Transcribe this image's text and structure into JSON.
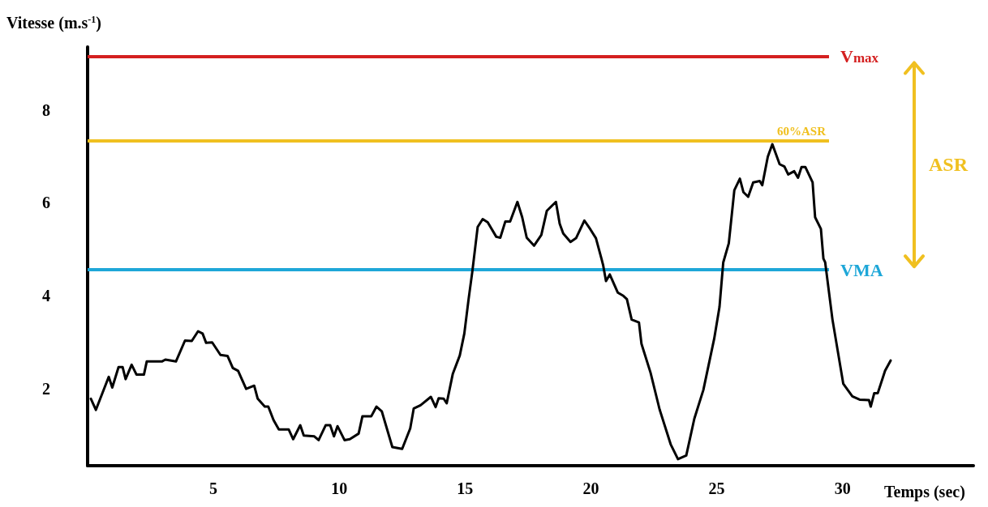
{
  "chart_data": {
    "type": "line",
    "xlabel": "Temps (sec)",
    "ylabel": "Vitesse (m.s$^{-1}$)",
    "xlim": [
      0,
      35.2
    ],
    "ylim": [
      0.35,
      9.35
    ],
    "xticks": [
      5,
      10,
      15,
      20,
      25,
      30
    ],
    "yticks": [
      2,
      4,
      6,
      8
    ],
    "grid": false,
    "marker": "none",
    "line_style": "solid",
    "series": [
      {
        "color": "#000000",
        "x": [
          0.13,
          0.33,
          0.84,
          0.98,
          1.23,
          1.39,
          1.51,
          1.75,
          1.94,
          2.24,
          2.35,
          2.95,
          3.09,
          3.51,
          3.87,
          4.14,
          4.39,
          4.57,
          4.71,
          4.95,
          5.28,
          5.56,
          5.77,
          5.98,
          6.3,
          6.62,
          6.76,
          7.04,
          7.18,
          7.39,
          7.6,
          7.99,
          8.17,
          8.45,
          8.59,
          9.01,
          9.18,
          9.46,
          9.64,
          9.79,
          9.93,
          10.21,
          10.42,
          10.77,
          10.92,
          11.27,
          11.48,
          11.69,
          12.11,
          12.5,
          12.82,
          12.96,
          13.23,
          13.64,
          13.83,
          13.95,
          14.15,
          14.27,
          14.51,
          14.79,
          14.97,
          15.14,
          15.29,
          15.5,
          15.7,
          15.9,
          16.24,
          16.4,
          16.6,
          16.79,
          17.08,
          17.27,
          17.45,
          17.74,
          18.03,
          18.25,
          18.61,
          18.76,
          18.9,
          19.19,
          19.41,
          19.74,
          19.98,
          20.2,
          20.42,
          20.49,
          20.6,
          20.75,
          21.07,
          21.29,
          21.43,
          21.62,
          21.91,
          22.01,
          22.37,
          22.73,
          23.17,
          23.46,
          23.79,
          24.11,
          24.47,
          24.9,
          25.11,
          25.26,
          25.48,
          25.7,
          25.92,
          26.06,
          26.25,
          26.45,
          26.71,
          26.81,
          27.03,
          27.21,
          27.5,
          27.69,
          27.84,
          28.08,
          28.23,
          28.37,
          28.52,
          28.81,
          28.91,
          29.14,
          29.24,
          29.31,
          29.6,
          30.03,
          30.39,
          30.68,
          31.05,
          31.12,
          31.26,
          31.4,
          31.69,
          31.91
        ],
        "values": [
          1.79,
          1.55,
          2.26,
          2.03,
          2.47,
          2.47,
          2.21,
          2.52,
          2.31,
          2.31,
          2.59,
          2.59,
          2.63,
          2.59,
          3.04,
          3.03,
          3.24,
          3.19,
          2.99,
          3.0,
          2.73,
          2.71,
          2.45,
          2.39,
          2.0,
          2.07,
          1.79,
          1.62,
          1.62,
          1.33,
          1.13,
          1.13,
          0.92,
          1.22,
          1.0,
          0.98,
          0.9,
          1.22,
          1.22,
          0.98,
          1.2,
          0.9,
          0.92,
          1.04,
          1.41,
          1.41,
          1.62,
          1.52,
          0.75,
          0.71,
          1.15,
          1.58,
          1.65,
          1.83,
          1.61,
          1.8,
          1.79,
          1.69,
          2.32,
          2.72,
          3.19,
          3.93,
          4.53,
          5.48,
          5.65,
          5.58,
          5.27,
          5.25,
          5.6,
          5.6,
          6.02,
          5.69,
          5.25,
          5.08,
          5.31,
          5.83,
          6.02,
          5.55,
          5.34,
          5.16,
          5.24,
          5.62,
          5.43,
          5.24,
          4.8,
          4.65,
          4.32,
          4.46,
          4.07,
          4.0,
          3.93,
          3.49,
          3.43,
          2.97,
          2.35,
          1.56,
          0.81,
          0.49,
          0.57,
          1.36,
          1.98,
          3.08,
          3.76,
          4.72,
          5.13,
          6.27,
          6.52,
          6.23,
          6.13,
          6.44,
          6.47,
          6.38,
          6.99,
          7.26,
          6.83,
          6.78,
          6.61,
          6.68,
          6.54,
          6.77,
          6.77,
          6.44,
          5.69,
          5.44,
          4.8,
          4.72,
          3.49,
          2.11,
          1.84,
          1.77,
          1.76,
          1.62,
          1.91,
          1.91,
          2.39,
          2.61
        ]
      }
    ],
    "ref_lines": [
      {
        "axis": "y",
        "value": 9.15,
        "label": "V$_{max}$",
        "color": "#d42020"
      },
      {
        "axis": "y",
        "value": 7.34,
        "label": "60%ASR",
        "color": "#f0c020"
      },
      {
        "axis": "y",
        "value": 4.56,
        "label": "VMA",
        "color": "#1ea7d8"
      }
    ],
    "annotations": [
      "ASR"
    ]
  }
}
